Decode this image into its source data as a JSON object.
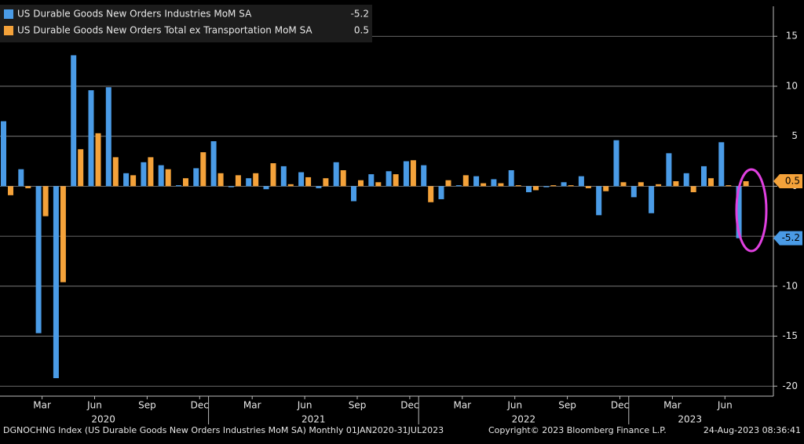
{
  "chart_data": {
    "type": "bar",
    "categories": [
      null,
      null,
      "Mar",
      null,
      null,
      "Jun",
      null,
      null,
      "Sep",
      null,
      null,
      "Dec",
      null,
      null,
      "Mar",
      null,
      null,
      "Jun",
      null,
      null,
      "Sep",
      null,
      null,
      "Dec",
      null,
      null,
      "Mar",
      null,
      null,
      "Jun",
      null,
      null,
      "Sep",
      null,
      null,
      "Dec",
      null,
      null,
      "Mar",
      null,
      null,
      "Jun",
      null
    ],
    "years": [
      "2020",
      "2021",
      "2022",
      "2023"
    ],
    "series": [
      {
        "name": "US Durable Goods New Orders Industries MoM SA",
        "color": "#4a9be6",
        "values": [
          6.5,
          1.7,
          -14.7,
          -19.2,
          13.1,
          9.6,
          9.9,
          1.3,
          2.4,
          2.1,
          0.1,
          1.8,
          4.5,
          -0.1,
          0.8,
          -0.3,
          2.0,
          1.4,
          -0.2,
          2.4,
          -1.5,
          1.2,
          1.5,
          2.5,
          2.1,
          -1.3,
          0.1,
          1.0,
          0.7,
          1.6,
          -0.6,
          -0.1,
          0.4,
          1.0,
          -2.9,
          4.6,
          -1.1,
          -2.7,
          3.3,
          1.3,
          2.0,
          4.4,
          -5.2
        ]
      },
      {
        "name": "US Durable Goods New Orders Total ex Transportation MoM SA",
        "color": "#f4a23a",
        "values": [
          -0.9,
          -0.2,
          -3.0,
          -9.6,
          3.7,
          5.3,
          2.9,
          1.1,
          2.9,
          1.7,
          0.8,
          3.4,
          1.3,
          1.1,
          1.3,
          2.3,
          0.2,
          0.9,
          0.8,
          1.6,
          0.6,
          0.4,
          1.2,
          2.6,
          -1.6,
          0.6,
          1.1,
          0.3,
          0.3,
          0.1,
          -0.4,
          0.1,
          0.1,
          -0.2,
          -0.5,
          0.4,
          0.4,
          0.2,
          0.5,
          -0.6,
          0.8,
          0.1,
          0.5
        ]
      }
    ],
    "ylim": [
      -21,
      18
    ],
    "yticks": [
      15,
      10,
      5,
      0,
      -5,
      -10,
      -15,
      -20
    ],
    "grid": true,
    "footer": {
      "source": "DGNOCHNG Index (US Durable Goods New Orders Industries MoM SA) Monthly 01JAN2020-31JUL2023",
      "copyright": "Copyright© 2023 Bloomberg Finance L.P.",
      "timestamp": "24-Aug-2023 08:36:41"
    }
  }
}
